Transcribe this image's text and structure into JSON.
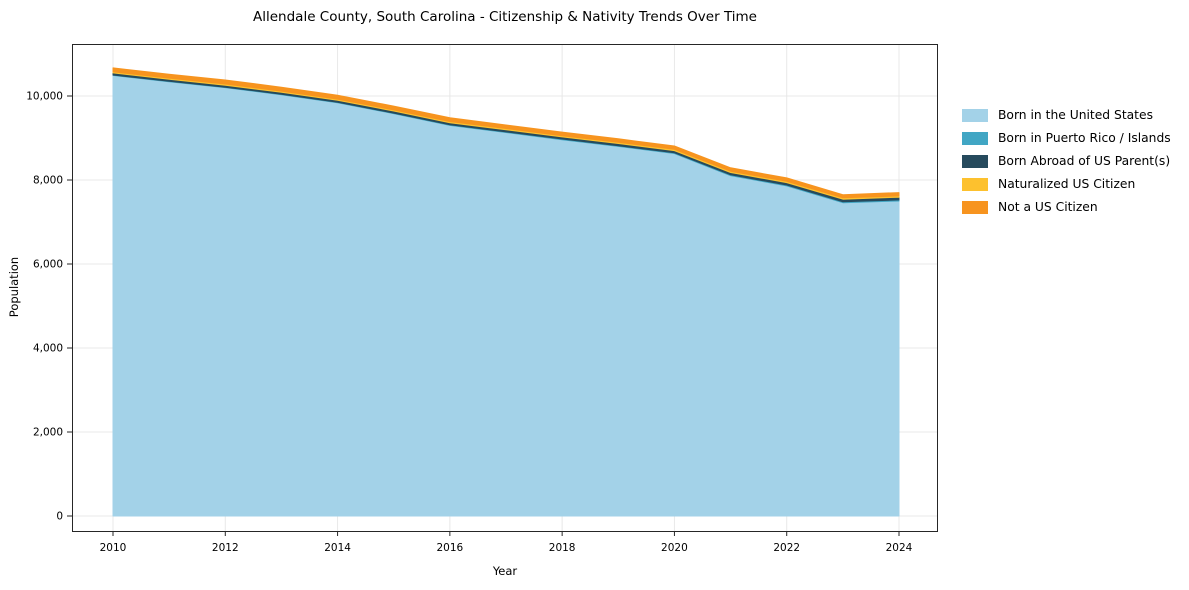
{
  "chart_data": {
    "type": "area",
    "stacked": true,
    "title": "Allendale County, South Carolina - Citizenship & Nativity Trends Over Time",
    "xlabel": "Year",
    "ylabel": "Population",
    "x": [
      2010,
      2011,
      2012,
      2013,
      2014,
      2015,
      2016,
      2017,
      2018,
      2019,
      2020,
      2021,
      2022,
      2023,
      2024
    ],
    "series": [
      {
        "id": "born_us",
        "name": "Born in the United States",
        "color": "#a3d2e8",
        "values": [
          10490,
          10340,
          10200,
          10030,
          9840,
          9580,
          9300,
          9130,
          8960,
          8800,
          8630,
          8105,
          7860,
          7460,
          7500
        ]
      },
      {
        "id": "born_pr_islands",
        "name": "Born in Puerto Rico / Islands",
        "color": "#41a6c4",
        "values": [
          10,
          10,
          10,
          12,
          12,
          14,
          14,
          15,
          15,
          16,
          18,
          18,
          20,
          22,
          25
        ]
      },
      {
        "id": "born_abroad",
        "name": "Born Abroad of US Parent(s)",
        "color": "#264a5d",
        "values": [
          50,
          50,
          48,
          46,
          46,
          48,
          48,
          50,
          50,
          52,
          52,
          55,
          58,
          62,
          65
        ]
      },
      {
        "id": "naturalized",
        "name": "Naturalized US Citizen",
        "color": "#fdc12e",
        "values": [
          25,
          26,
          27,
          28,
          28,
          28,
          30,
          30,
          30,
          30,
          30,
          32,
          32,
          32,
          32
        ]
      },
      {
        "id": "not_citizen",
        "name": "Not a US Citizen",
        "color": "#f7941f",
        "values": [
          95,
          94,
          95,
          94,
          94,
          90,
          88,
          85,
          85,
          82,
          80,
          80,
          80,
          74,
          78
        ]
      }
    ],
    "totals": [
      10670,
      10520,
      10380,
      10210,
      10020,
      9760,
      9480,
      9310,
      9140,
      8980,
      8810,
      8290,
      8050,
      7650,
      7700
    ],
    "xticks": [
      "2010",
      "2012",
      "2014",
      "2016",
      "2018",
      "2020",
      "2022",
      "2024"
    ],
    "xtick_values": [
      2010,
      2012,
      2014,
      2016,
      2018,
      2020,
      2022,
      2024
    ],
    "yticks": [
      "0",
      "2,000",
      "4,000",
      "6,000",
      "8,000",
      "10,000"
    ],
    "ytick_values": [
      0,
      2000,
      4000,
      6000,
      8000,
      10000
    ],
    "ylim": [
      0,
      11240
    ],
    "grid": true,
    "legend_position": "right",
    "grid_color": "#e8e8e8",
    "spine_color": "#262626",
    "text_color": "#000000"
  }
}
